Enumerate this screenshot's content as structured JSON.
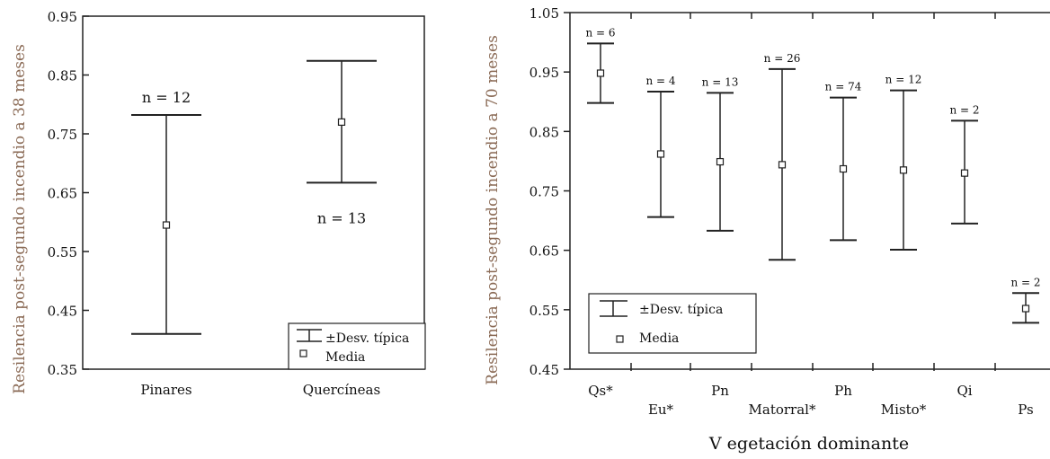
{
  "chart_data": [
    {
      "type": "error_bar",
      "ylabel": "Resilencia post-segundo incendio a 38 meses",
      "xlabel": "",
      "ylim": [
        0.35,
        0.95
      ],
      "yticks": [
        "0.35",
        "0.45",
        "0.55",
        "0.65",
        "0.75",
        "0.85",
        "0.95"
      ],
      "categories": [
        "Pinares",
        "Quercíneas"
      ],
      "mean": [
        0.595,
        0.77
      ],
      "lower": [
        0.41,
        0.667
      ],
      "upper": [
        0.782,
        0.874
      ],
      "n_labels": [
        "n = 12",
        "n = 13"
      ],
      "legend": {
        "items": [
          "±Desv. típica",
          "Media"
        ],
        "position": "bottom-right"
      }
    },
    {
      "type": "error_bar",
      "ylabel": "Resilencia post-segundo incendio a 70 meses",
      "xlabel": "V egetación dominante",
      "ylim": [
        0.45,
        1.05
      ],
      "yticks": [
        "0.45",
        "0.55",
        "0.65",
        "0.75",
        "0.85",
        "0.95",
        "1.05"
      ],
      "categories": [
        "Qs*",
        "Eu*",
        "Pn",
        "Matorral*",
        "Ph",
        "Misto*",
        "Qi",
        "Ps"
      ],
      "mean": [
        0.948,
        0.812,
        0.799,
        0.794,
        0.787,
        0.785,
        0.78,
        0.552
      ],
      "lower": [
        0.898,
        0.706,
        0.683,
        0.634,
        0.667,
        0.651,
        0.695,
        0.528
      ],
      "upper": [
        0.998,
        0.917,
        0.915,
        0.955,
        0.907,
        0.919,
        0.868,
        0.578
      ],
      "n_labels": [
        "n = 6",
        "n = 4",
        "n = 13",
        "n = 26",
        "n = 74",
        "n = 12",
        "n = 2",
        "n = 2"
      ],
      "legend": {
        "items": [
          "±Desv. típica",
          "Media"
        ],
        "position": "bottom-left"
      }
    }
  ]
}
